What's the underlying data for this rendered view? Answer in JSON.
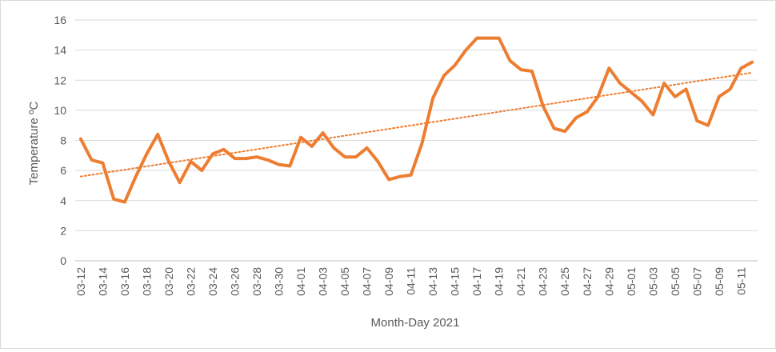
{
  "chart_data": {
    "type": "line",
    "title": "",
    "xlabel": "Month-Day 2021",
    "ylabel": "Temperature ºC",
    "ylim": [
      0,
      16
    ],
    "yticks": [
      0,
      2,
      4,
      6,
      8,
      10,
      12,
      14,
      16
    ],
    "grid": "horizontal",
    "legend": "none",
    "x": [
      "03-12",
      "03-13",
      "03-14",
      "03-15",
      "03-16",
      "03-17",
      "03-18",
      "03-19",
      "03-20",
      "03-21",
      "03-22",
      "03-23",
      "03-24",
      "03-25",
      "03-26",
      "03-27",
      "03-28",
      "03-29",
      "03-30",
      "03-31",
      "04-01",
      "04-02",
      "04-03",
      "04-04",
      "04-05",
      "04-06",
      "04-07",
      "04-08",
      "04-09",
      "04-10",
      "04-11",
      "04-12",
      "04-13",
      "04-14",
      "04-15",
      "04-16",
      "04-17",
      "04-18",
      "04-19",
      "04-20",
      "04-21",
      "04-22",
      "04-23",
      "04-24",
      "04-25",
      "04-26",
      "04-27",
      "04-28",
      "04-29",
      "04-30",
      "05-01",
      "05-02",
      "05-03",
      "05-04",
      "05-05",
      "05-06",
      "05-07",
      "05-08",
      "05-09",
      "05-10",
      "05-11",
      "05-12"
    ],
    "x_tick_labels": [
      "03-12",
      "03-14",
      "03-16",
      "03-18",
      "03-20",
      "03-22",
      "03-24",
      "03-26",
      "03-28",
      "03-30",
      "04-01",
      "04-03",
      "04-05",
      "04-07",
      "04-09",
      "04-11",
      "04-13",
      "04-15",
      "04-17",
      "04-19",
      "04-21",
      "04-23",
      "04-25",
      "04-27",
      "04-29",
      "05-01",
      "05-03",
      "05-05",
      "05-07",
      "05-09",
      "05-11"
    ],
    "series": [
      {
        "color": "#ed7d31",
        "values": [
          8.1,
          6.7,
          6.5,
          4.1,
          3.9,
          5.6,
          7.1,
          8.4,
          6.6,
          5.2,
          6.6,
          6.0,
          7.1,
          7.4,
          6.8,
          6.8,
          6.9,
          6.7,
          6.4,
          6.3,
          8.2,
          7.6,
          8.5,
          7.5,
          6.9,
          6.9,
          7.5,
          6.6,
          5.4,
          5.6,
          5.7,
          7.8,
          10.8,
          12.3,
          13.0,
          14.0,
          14.8,
          14.8,
          14.8,
          13.3,
          12.7,
          12.6,
          10.3,
          8.8,
          8.6,
          9.5,
          9.9,
          10.9,
          12.8,
          11.8,
          11.2,
          10.6,
          9.7,
          11.8,
          10.9,
          11.4,
          9.3,
          9.0,
          10.9,
          11.4,
          12.8,
          13.2
        ]
      }
    ],
    "trendline": {
      "type": "linear",
      "style": "dotted",
      "color": "#ed7d31",
      "start": 5.6,
      "end": 12.5
    }
  }
}
